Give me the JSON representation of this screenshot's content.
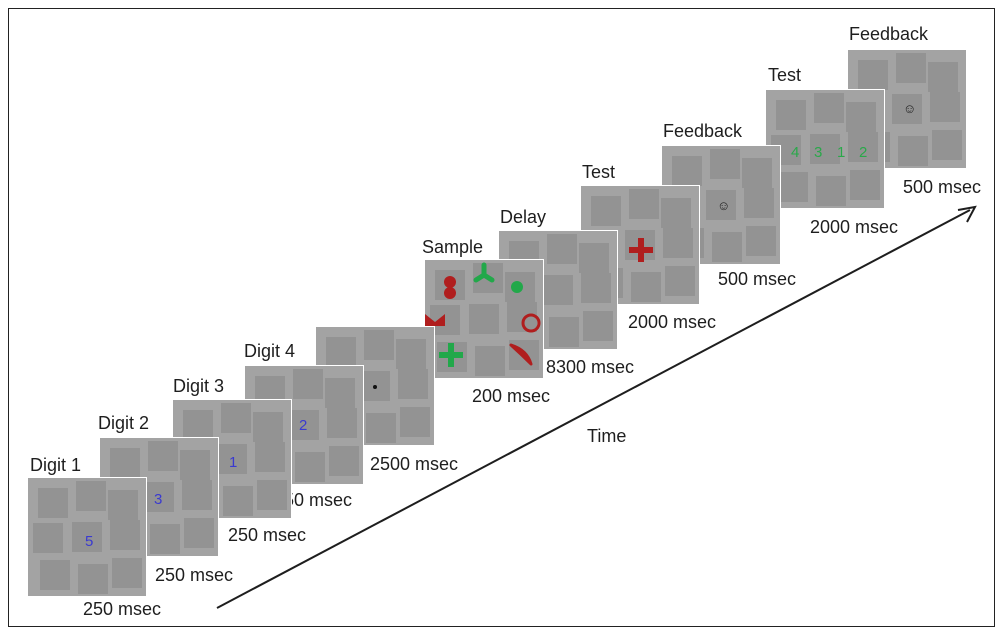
{
  "colors": {
    "screen_bg": "#a3a3a3",
    "cell_bg": "#939393",
    "digit_blue": "#3a3ad0",
    "test_green": "#2aa84a",
    "shape_red": "#b01e1e",
    "shape_green": "#22a84a"
  },
  "time_label": "Time",
  "frames": [
    {
      "label": "Digit 1",
      "duration": "250 msec",
      "content": "5"
    },
    {
      "label": "Digit 2",
      "duration": "250 msec",
      "content": "3"
    },
    {
      "label": "Digit 3",
      "duration": "250 msec",
      "content": "1"
    },
    {
      "label": "Digit 4",
      "duration": "250 msec",
      "content": "2"
    },
    {
      "label": "",
      "duration": "2500 msec",
      "content": "fixation-dot"
    },
    {
      "label": "Sample",
      "duration": "200 msec",
      "content": "shape-array"
    },
    {
      "label": "Delay",
      "duration": "8300 msec",
      "content": ""
    },
    {
      "label": "Test",
      "duration": "2000 msec",
      "content": "red-cross"
    },
    {
      "label": "Feedback",
      "duration": "500 msec",
      "content": "☺"
    },
    {
      "label": "Test",
      "duration": "2000 msec",
      "content": "",
      "digits": [
        "4",
        "3",
        "1",
        "2"
      ]
    },
    {
      "label": "Feedback",
      "duration": "500 msec",
      "content": "☺"
    }
  ]
}
